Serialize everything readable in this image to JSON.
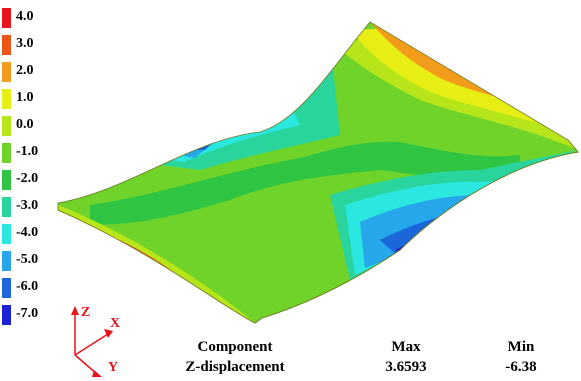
{
  "legend": [
    {
      "label": "4.0",
      "color": "#e8141b"
    },
    {
      "label": "3.0",
      "color": "#ee5318"
    },
    {
      "label": "2.0",
      "color": "#f39c1b"
    },
    {
      "label": "1.0",
      "color": "#e7ee14"
    },
    {
      "label": "0.0",
      "color": "#b6e619"
    },
    {
      "label": "-1.0",
      "color": "#6fd32a"
    },
    {
      "label": "-2.0",
      "color": "#2fc542"
    },
    {
      "label": "-3.0",
      "color": "#29d59c"
    },
    {
      "label": "-4.0",
      "color": "#2ae7e0"
    },
    {
      "label": "-5.0",
      "color": "#26a7ec"
    },
    {
      "label": "-6.0",
      "color": "#1b66d8"
    },
    {
      "label": "-7.0",
      "color": "#1a22d6"
    }
  ],
  "axes": {
    "z": "Z",
    "x": "X",
    "y": "Y"
  },
  "info": {
    "component_header": "Component",
    "component_value": "Z-displacement",
    "max_header": "Max",
    "max_value": "3.6593",
    "min_header": "Min",
    "min_value": "-6.38"
  }
}
